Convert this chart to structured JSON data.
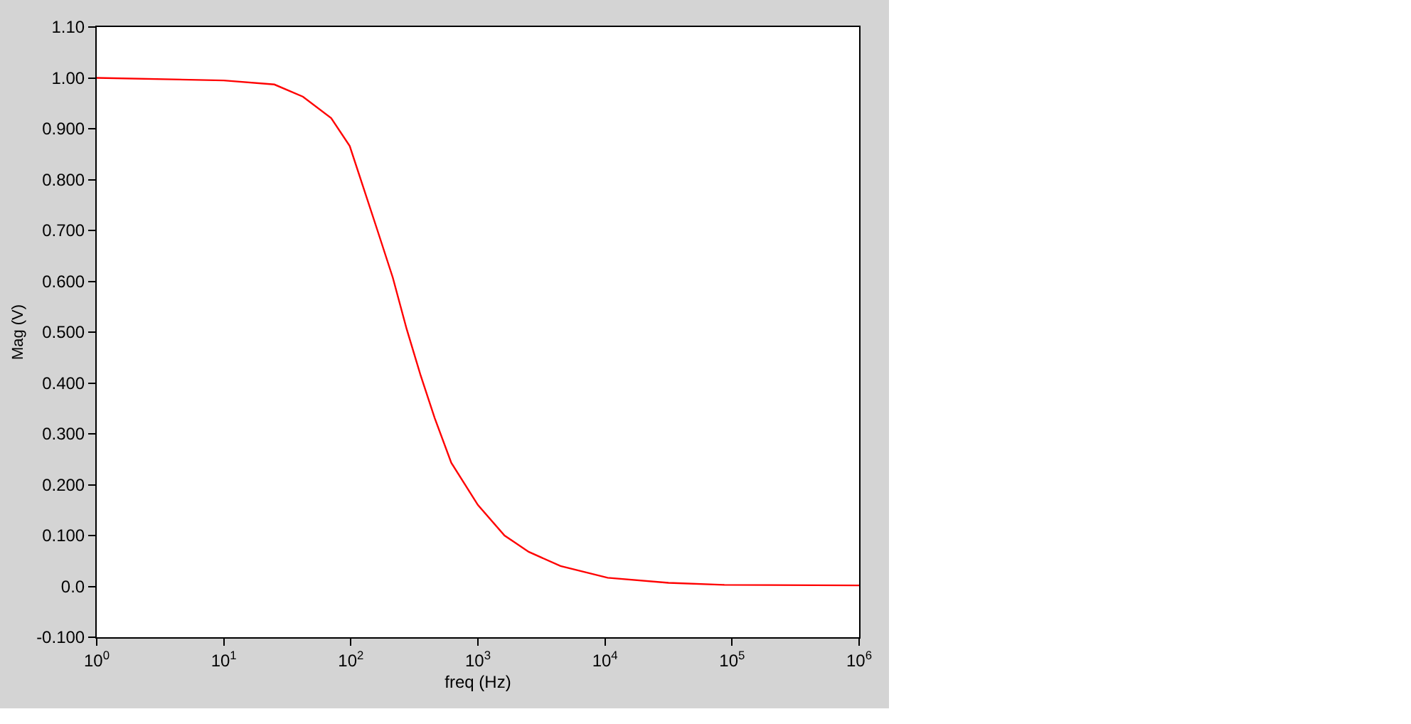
{
  "chart_data": {
    "type": "line",
    "xlabel": "freq (Hz)",
    "ylabel": "Mag (V)",
    "log": "x",
    "legend": false,
    "marker": "none",
    "line_style": "solid",
    "xlim": [
      1,
      1000000
    ],
    "xticks": [
      {
        "value": 1,
        "label": "10$^{0}$"
      },
      {
        "value": 10,
        "label": "10$^{1}$"
      },
      {
        "value": 100,
        "label": "10$^{2}$"
      },
      {
        "value": 1000,
        "label": "10$^{3}$"
      },
      {
        "value": 10000,
        "label": "10$^{4}$"
      },
      {
        "value": 100000,
        "label": "10$^{5}$"
      },
      {
        "value": 1000000,
        "label": "10$^{6}$"
      }
    ],
    "ylim": [
      -0.1,
      1.1
    ],
    "yticks": [
      {
        "value": -0.1,
        "label": "-0.100"
      },
      {
        "value": 0,
        "label": "0.0"
      },
      {
        "value": 0.1,
        "label": "0.100"
      },
      {
        "value": 0.2,
        "label": "0.200"
      },
      {
        "value": 0.3,
        "label": "0.300"
      },
      {
        "value": 0.4,
        "label": "0.400"
      },
      {
        "value": 0.5,
        "label": "0.500"
      },
      {
        "value": 0.6,
        "label": "0.600"
      },
      {
        "value": 0.7,
        "label": "0.700"
      },
      {
        "value": 0.8,
        "label": "0.800"
      },
      {
        "value": 0.9,
        "label": "0.900"
      },
      {
        "value": 1.0,
        "label": "1.00"
      },
      {
        "value": 1.1,
        "label": "1.10"
      }
    ],
    "x": [
      1,
      10,
      25,
      42,
      70,
      98,
      126,
      162,
      214,
      275,
      355,
      457,
      617,
      1000,
      1620,
      2510,
      4470,
      10500,
      31600,
      87000,
      1000000
    ],
    "series": [
      {
        "color": "#ff0000",
        "values": [
          1.0,
          0.995,
          0.987,
          0.963,
          0.921,
          0.866,
          0.783,
          0.7,
          0.607,
          0.506,
          0.414,
          0.331,
          0.243,
          0.16,
          0.1,
          0.068,
          0.04,
          0.017,
          0.007,
          0.003,
          0.002
        ]
      }
    ]
  }
}
